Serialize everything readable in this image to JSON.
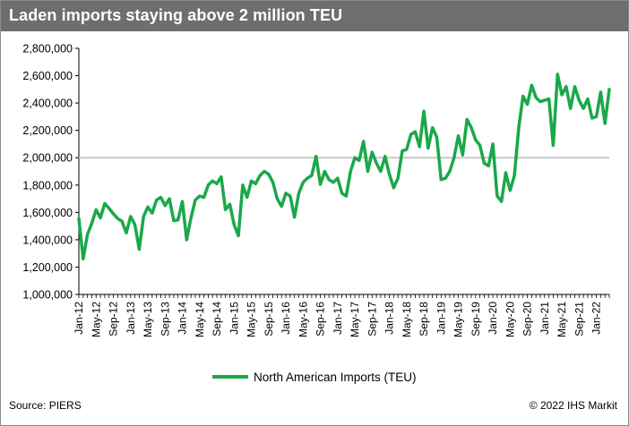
{
  "header": {
    "title": "Laden imports staying above 2 million TEU"
  },
  "footer": {
    "source": "Source: PIERS",
    "copyright": "© 2022 IHS Markit"
  },
  "colors": {
    "series": "#1aa84a",
    "reference_line": "#c8c8c8",
    "title_bar": "#6d6e70"
  },
  "chart_data": {
    "type": "line",
    "title": "Laden imports staying above 2 million TEU",
    "ylim": [
      1000000,
      2800000
    ],
    "yticks": [
      "1,000,000",
      "1,200,000",
      "1,400,000",
      "1,600,000",
      "1,800,000",
      "2,000,000",
      "2,200,000",
      "2,400,000",
      "2,600,000",
      "2,800,000"
    ],
    "ytick_values": [
      1000000,
      1200000,
      1400000,
      1600000,
      1800000,
      2000000,
      2200000,
      2400000,
      2600000,
      2800000
    ],
    "xticks": [
      "Jan-12",
      "May-12",
      "Sep-12",
      "Jan-13",
      "May-13",
      "Sep-13",
      "Jan-14",
      "May-14",
      "Sep-14",
      "Jan-15",
      "May-15",
      "Sep-15",
      "Jan-16",
      "May-16",
      "Sep-16",
      "Jan-17",
      "May-17",
      "Sep-17",
      "Jan-18",
      "May-18",
      "Sep-18",
      "Jan-19",
      "May-19",
      "Sep-19",
      "Jan-20",
      "May-20",
      "Sep-20",
      "Jan-21",
      "May-21",
      "Sep-21",
      "Jan-22"
    ],
    "reference_line": 2000000,
    "grid": false,
    "legend": "bottom",
    "start": "Jan-12",
    "series": [
      {
        "name": "North American Imports (TEU)",
        "values": [
          1555000,
          1260000,
          1440000,
          1520000,
          1620000,
          1560000,
          1665000,
          1630000,
          1590000,
          1555000,
          1535000,
          1450000,
          1570000,
          1510000,
          1330000,
          1570000,
          1640000,
          1595000,
          1690000,
          1710000,
          1650000,
          1700000,
          1540000,
          1545000,
          1680000,
          1400000,
          1560000,
          1690000,
          1720000,
          1710000,
          1800000,
          1830000,
          1810000,
          1860000,
          1620000,
          1660000,
          1510000,
          1430000,
          1800000,
          1710000,
          1830000,
          1810000,
          1870000,
          1900000,
          1880000,
          1820000,
          1700000,
          1645000,
          1740000,
          1720000,
          1565000,
          1740000,
          1820000,
          1850000,
          1870000,
          2010000,
          1805000,
          1900000,
          1840000,
          1820000,
          1850000,
          1740000,
          1720000,
          1900000,
          2000000,
          1980000,
          2120000,
          1900000,
          2040000,
          1960000,
          1900000,
          2010000,
          1880000,
          1780000,
          1850000,
          2050000,
          2060000,
          2170000,
          2190000,
          2080000,
          2340000,
          2070000,
          2220000,
          2150000,
          1840000,
          1850000,
          1900000,
          2000000,
          2160000,
          2020000,
          2280000,
          2220000,
          2130000,
          2090000,
          1960000,
          1940000,
          2100000,
          1720000,
          1680000,
          1890000,
          1760000,
          1870000,
          2220000,
          2450000,
          2390000,
          2530000,
          2440000,
          2410000,
          2420000,
          2430000,
          2090000,
          2610000,
          2460000,
          2520000,
          2360000,
          2520000,
          2420000,
          2360000,
          2430000,
          2290000,
          2300000,
          2480000,
          2250000,
          2500000
        ]
      }
    ]
  }
}
